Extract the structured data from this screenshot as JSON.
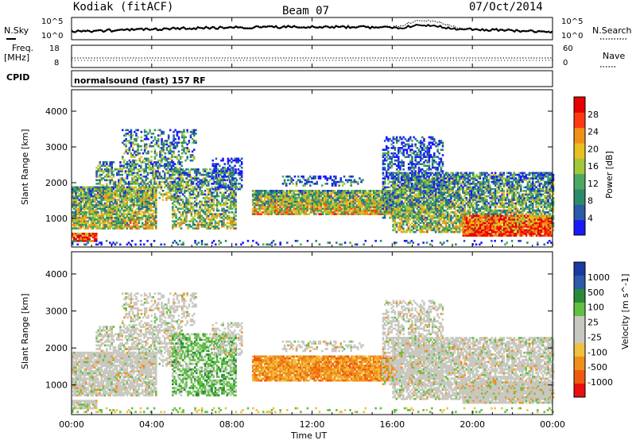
{
  "header": {
    "radar": "Kodiak (fitACF)",
    "beam": "Beam 07",
    "date": "07/Oct/2014"
  },
  "noise_panel": {
    "left_label": "N.Sky",
    "left_ticks": [
      "10^5",
      "10^0"
    ],
    "right_label": "N.Search",
    "right_ticks": [
      "10^5",
      "10^0"
    ]
  },
  "freq_panel": {
    "left_label": "Freq.",
    "left_unit": "[MHz]",
    "left_ticks": [
      "18",
      "8"
    ],
    "right_label": "Nave",
    "right_ticks": [
      "60",
      "0"
    ]
  },
  "cpid_panel": {
    "label": "CPID",
    "text": "normalsound (fast) 157 RF"
  },
  "colors": {
    "power": [
      "#1a1aff",
      "#2a5aa8",
      "#2a8a6a",
      "#4aa860",
      "#a0c83a",
      "#e8c020",
      "#f0901a",
      "#ff3a10",
      "#e80000"
    ],
    "velocity": [
      "#e81010",
      "#f05a10",
      "#f0901a",
      "#f0c040",
      "#c8c8c0",
      "#c8c8c0",
      "#60c040",
      "#2a8a3a",
      "#2a5aa8",
      "#1a3aa0"
    ]
  },
  "chart_data": [
    {
      "type": "heatmap",
      "name": "power",
      "ylabel": "Slant Range [km]",
      "xlim": [
        0,
        24
      ],
      "ylim": [
        200,
        4600
      ],
      "y_ticks": [
        1000,
        2000,
        3000,
        4000
      ],
      "colorbar": {
        "label": "Power [dB]",
        "ticks": [
          4,
          8,
          12,
          16,
          20,
          24,
          28
        ],
        "range": [
          0,
          32
        ]
      }
    },
    {
      "type": "heatmap",
      "name": "velocity",
      "ylabel": "Slant Range [km]",
      "xlabel": "Time UT",
      "xlim": [
        0,
        24
      ],
      "ylim": [
        200,
        4600
      ],
      "y_ticks": [
        1000,
        2000,
        3000,
        4000
      ],
      "x_ticks": [
        "00:00",
        "04:00",
        "08:00",
        "12:00",
        "16:00",
        "20:00",
        "00:00"
      ],
      "colorbar": {
        "label": "Velocity [m s^-1]",
        "ticks": [
          "1000",
          "500",
          "100",
          "25",
          "-25",
          "-100",
          "-500",
          "-1000"
        ]
      }
    }
  ]
}
